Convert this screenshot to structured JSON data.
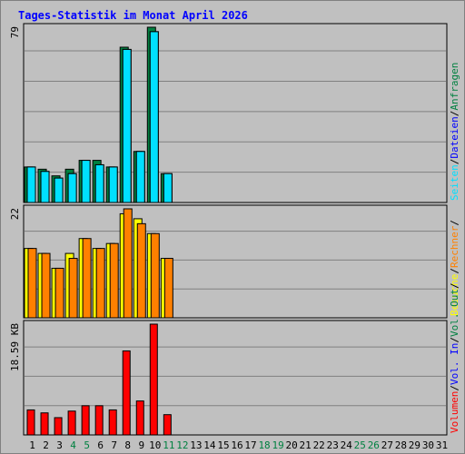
{
  "colors": {
    "background": "#c0c0c0",
    "plot_bg": "#c0c0c0",
    "grid": "#808080",
    "title": "#0000ff",
    "hits": "#008040",
    "files": "#00c0ff",
    "pages": "#00e0ff",
    "visits": "#ffff00",
    "sites": "#ff8000",
    "kvol": "#ff0000",
    "kin": "#0000ff",
    "kout": "#008040",
    "day_default": "#000000",
    "day_weekend": "#008040"
  },
  "chart_data": {
    "type": "bar",
    "title": "Tages-Statistik im Monat April 2026",
    "categories": [
      "1",
      "2",
      "3",
      "4",
      "5",
      "6",
      "7",
      "8",
      "9",
      "10",
      "11",
      "12",
      "13",
      "14",
      "15",
      "16",
      "17",
      "18",
      "19",
      "20",
      "21",
      "22",
      "23",
      "24",
      "25",
      "26",
      "27",
      "28",
      "29",
      "30",
      "31"
    ],
    "weekend_days": [
      "4",
      "5",
      "11",
      "12",
      "18",
      "19",
      "25",
      "26"
    ],
    "panels": [
      {
        "name": "hits-panel",
        "ymax_label": "79",
        "ylim": [
          0,
          79
        ],
        "series": [
          {
            "name": "Anfragen",
            "color": "#008040",
            "values": [
              16,
              15,
              12,
              15,
              19,
              19,
              16,
              70,
              23,
              79,
              13,
              0,
              0,
              0,
              0,
              0,
              0,
              0,
              0,
              0,
              0,
              0,
              0,
              0,
              0,
              0,
              0,
              0,
              0,
              0,
              0
            ]
          },
          {
            "name": "Dateien",
            "color": "#00c0ff",
            "values": [
              16,
              14,
              11,
              13,
              19,
              17,
              16,
              69,
              23,
              77,
              13,
              0,
              0,
              0,
              0,
              0,
              0,
              0,
              0,
              0,
              0,
              0,
              0,
              0,
              0,
              0,
              0,
              0,
              0,
              0,
              0
            ]
          },
          {
            "name": "Seiten",
            "color": "#00e0ff",
            "values": [
              16,
              14,
              11,
              13,
              19,
              17,
              16,
              69,
              23,
              77,
              13,
              0,
              0,
              0,
              0,
              0,
              0,
              0,
              0,
              0,
              0,
              0,
              0,
              0,
              0,
              0,
              0,
              0,
              0,
              0,
              0
            ]
          }
        ]
      },
      {
        "name": "visits-panel",
        "ymax_label": "22",
        "ylim": [
          0,
          22
        ],
        "series": [
          {
            "name": "Besuche",
            "color": "#ffff00",
            "values": [
              14,
              13,
              10,
              13,
              16,
              14,
              15,
              21,
              20,
              17,
              12,
              0,
              0,
              0,
              0,
              0,
              0,
              0,
              0,
              0,
              0,
              0,
              0,
              0,
              0,
              0,
              0,
              0,
              0,
              0,
              0
            ]
          },
          {
            "name": "Rechner",
            "color": "#ff8000",
            "values": [
              14,
              13,
              10,
              12,
              16,
              14,
              15,
              22,
              19,
              17,
              12,
              0,
              0,
              0,
              0,
              0,
              0,
              0,
              0,
              0,
              0,
              0,
              0,
              0,
              0,
              0,
              0,
              0,
              0,
              0,
              0
            ]
          }
        ]
      },
      {
        "name": "kbytes-panel",
        "ymax_label": "18.59 KB",
        "ylim": [
          0,
          18.59
        ],
        "series": [
          {
            "name": "Volumen",
            "color": "#ff0000",
            "values": [
              4.2,
              3.7,
              2.9,
              4.0,
              4.9,
              4.9,
              4.2,
              14.1,
              5.7,
              18.59,
              3.4,
              0,
              0,
              0,
              0,
              0,
              0,
              0,
              0,
              0,
              0,
              0,
              0,
              0,
              0,
              0,
              0,
              0,
              0,
              0,
              0
            ]
          }
        ]
      }
    ],
    "legend": {
      "placement": "right-vertical",
      "panel_1": [
        {
          "label": "Seiten",
          "color": "#00e0ff"
        },
        {
          "label": "/",
          "color": "#000000"
        },
        {
          "label": "Dateien",
          "color": "#0000ff"
        },
        {
          "label": "/",
          "color": "#000000"
        },
        {
          "label": "Anfragen",
          "color": "#008040"
        }
      ],
      "panel_2": [
        {
          "label": "Besuche",
          "color": "#ffff00"
        },
        {
          "label": "/",
          "color": "#000000"
        },
        {
          "label": "Rechner",
          "color": "#ff8000"
        },
        {
          "label": "/",
          "color": "#000000"
        }
      ],
      "panel_3": [
        {
          "label": "Volumen",
          "color": "#ff0000"
        },
        {
          "label": "/",
          "color": "#000000"
        },
        {
          "label": "Vol. In",
          "color": "#0000ff"
        },
        {
          "label": "/",
          "color": "#000000"
        },
        {
          "label": "Vol. Out",
          "color": "#008040"
        },
        {
          "label": "/",
          "color": "#000000"
        }
      ]
    },
    "grid": true
  }
}
